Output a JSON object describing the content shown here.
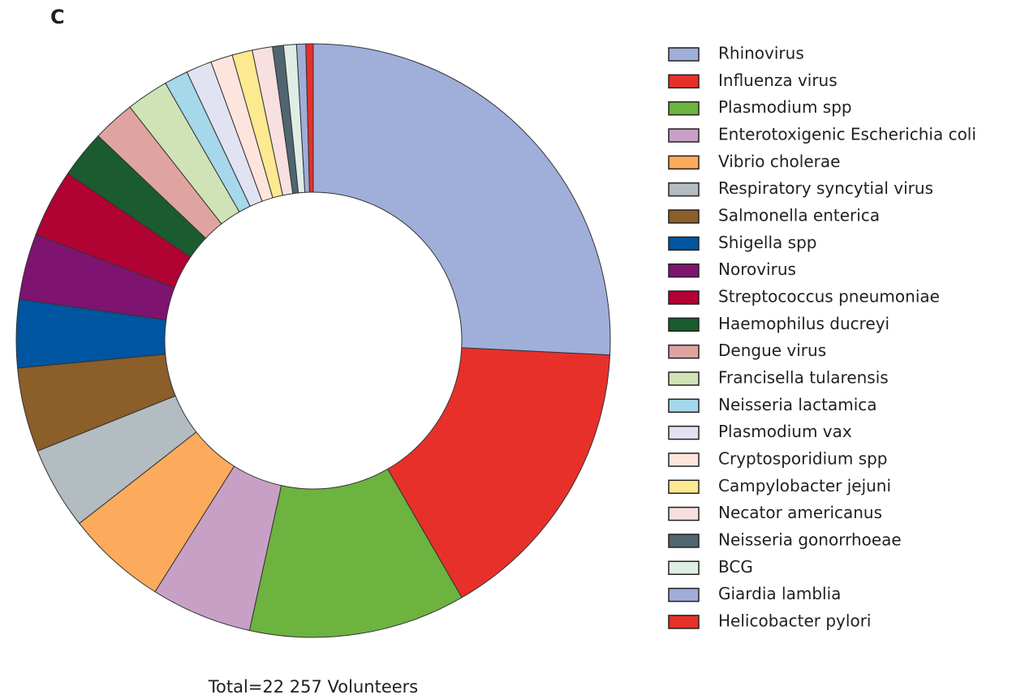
{
  "chart_data": {
    "type": "pie",
    "title": "C",
    "caption": "Total=22 257 Volunteers",
    "donut": true,
    "categories": [
      "Rhinovirus",
      "Influenza virus",
      "Plasmodium spp",
      "Enterotoxigenic Escherichia coli",
      "Vibrio cholerae",
      "Respiratory syncytial virus",
      "Salmonella enterica",
      "Shigella spp",
      "Norovirus",
      "Streptococcus pneumoniae",
      "Haemophilus ducreyi",
      "Dengue virus",
      "Francisella tularensis",
      "Neisseria lactamica",
      "Plasmodium vax",
      "Cryptosporidium spp",
      "Campylobacter jejuni",
      "Necator americanus",
      "Neisseria gonorrhoeae",
      "BCG",
      "Giardia lamblia",
      "Helicobacter pylori"
    ],
    "values": [
      25.8,
      15.9,
      11.8,
      5.5,
      5.5,
      4.5,
      4.6,
      3.7,
      3.6,
      3.7,
      2.6,
      2.3,
      2.3,
      1.3,
      1.4,
      1.2,
      1.1,
      1.1,
      0.6,
      0.7,
      0.5,
      0.4
    ],
    "colors": [
      "#9fafd9",
      "#e8302a",
      "#6db33f",
      "#c8a0c6",
      "#fbab5b",
      "#b3bcc0",
      "#8b5e2a",
      "#0055a0",
      "#7e1470",
      "#b10234",
      "#1a5c30",
      "#dfa4a0",
      "#cfe3b6",
      "#a5d8ea",
      "#e1e2f2",
      "#fde5dd",
      "#fde98f",
      "#f7e0df",
      "#4f6670",
      "#dfeee5",
      "#9faed9",
      "#e8302a"
    ],
    "legend": "right"
  }
}
